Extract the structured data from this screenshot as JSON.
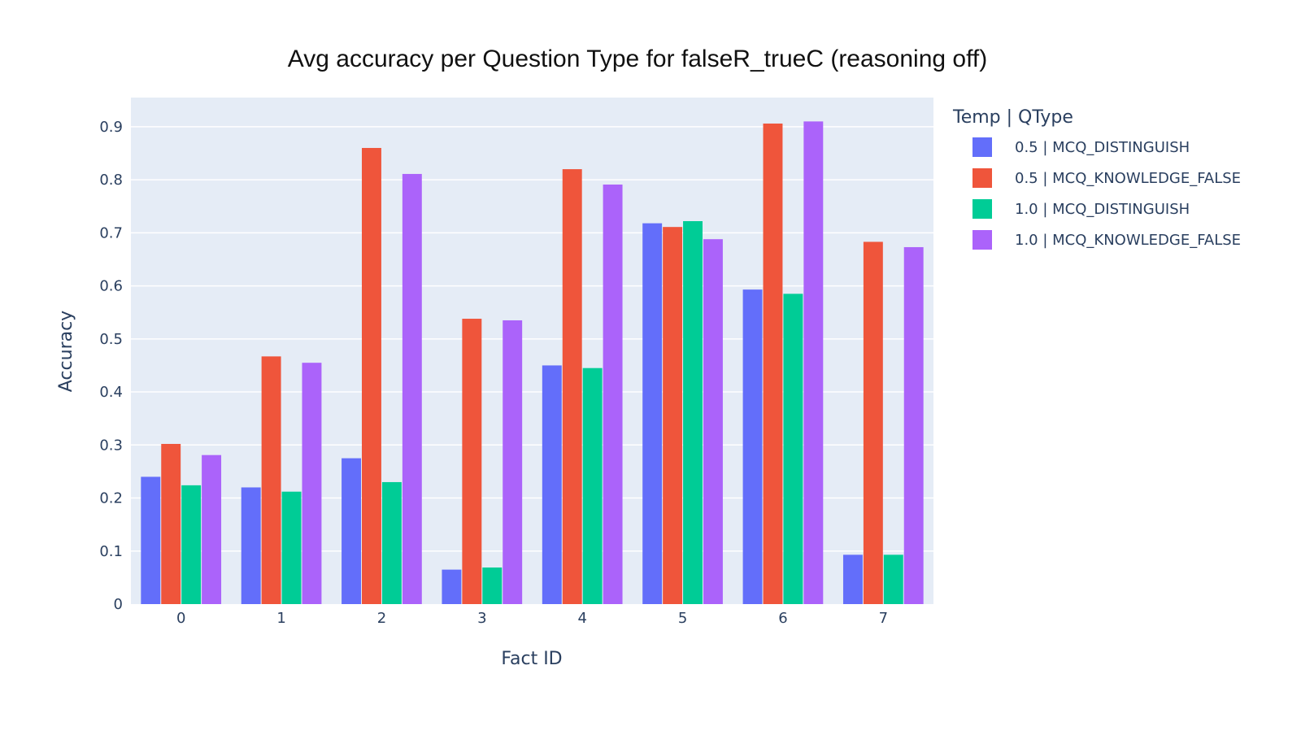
{
  "chart_data": {
    "type": "bar",
    "title": "Avg accuracy per Question Type for falseR_trueC (reasoning off)",
    "xlabel": "Fact ID",
    "ylabel": "Accuracy",
    "categories": [
      "0",
      "1",
      "2",
      "3",
      "4",
      "5",
      "6",
      "7"
    ],
    "ylim": [
      0,
      0.955
    ],
    "yticks": [
      0,
      0.1,
      0.2,
      0.3,
      0.4,
      0.5,
      0.6,
      0.7,
      0.8,
      0.9
    ],
    "ytick_labels": [
      "0",
      "0.1",
      "0.2",
      "0.3",
      "0.4",
      "0.5",
      "0.6",
      "0.7",
      "0.8",
      "0.9"
    ],
    "grid": true,
    "legend": {
      "title": "Temp | QType",
      "position": "right"
    },
    "series": [
      {
        "name": "0.5 | MCQ_DISTINGUISH",
        "color": "#636efa",
        "values": [
          0.24,
          0.22,
          0.275,
          0.065,
          0.45,
          0.718,
          0.593,
          0.093
        ]
      },
      {
        "name": "0.5 | MCQ_KNOWLEDGE_FALSE",
        "color": "#ef553b",
        "values": [
          0.302,
          0.467,
          0.86,
          0.538,
          0.82,
          0.711,
          0.906,
          0.683
        ]
      },
      {
        "name": "1.0 | MCQ_DISTINGUISH",
        "color": "#00cc96",
        "values": [
          0.224,
          0.212,
          0.23,
          0.069,
          0.445,
          0.722,
          0.585,
          0.093
        ]
      },
      {
        "name": "1.0 | MCQ_KNOWLEDGE_FALSE",
        "color": "#ab63fa",
        "values": [
          0.281,
          0.455,
          0.811,
          0.535,
          0.791,
          0.688,
          0.91,
          0.673
        ]
      }
    ],
    "plot_background": "#e5ecf6",
    "grid_color": "#ffffff"
  }
}
